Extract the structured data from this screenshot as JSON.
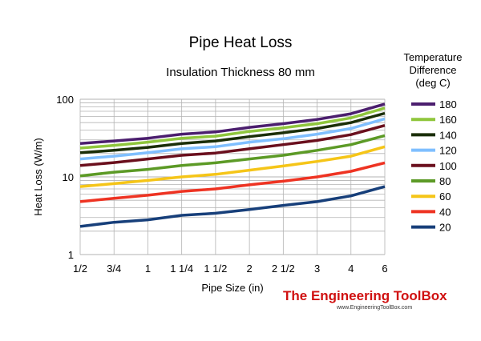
{
  "chart_data": {
    "type": "line",
    "title": "Pipe Heat Loss",
    "subtitle": "Insulation Thickness 80 mm",
    "xlabel": "Pipe Size (in)",
    "ylabel": "Heat Loss (W/m)",
    "y_scale": "log",
    "ylim": [
      1,
      100
    ],
    "y_ticks": [
      "1",
      "10",
      "100"
    ],
    "grid": true,
    "legend_position": "right",
    "legend_title": "Temperature Difference (deg C)",
    "categories": [
      "1/2",
      "3/4",
      "1",
      "1 1/4",
      "1 1/2",
      "2",
      "2 1/2",
      "3",
      "4",
      "6"
    ],
    "series": [
      {
        "name": "180",
        "color": "#4b1e6e",
        "values": [
          27,
          29,
          31.5,
          35.5,
          38,
          43.5,
          48.5,
          55,
          65,
          87
        ]
      },
      {
        "name": "160",
        "color": "#8fc63c",
        "values": [
          23.5,
          25.5,
          28,
          31.5,
          33.5,
          38.5,
          43,
          48.5,
          57.5,
          77
        ]
      },
      {
        "name": "140",
        "color": "#1a2e08",
        "values": [
          20.5,
          22,
          24,
          27,
          29,
          33,
          37,
          42,
          50,
          66
        ]
      },
      {
        "name": "120",
        "color": "#7fbfff",
        "values": [
          17,
          18.5,
          20.5,
          23,
          24.5,
          28,
          31,
          35.5,
          42,
          56
        ]
      },
      {
        "name": "100",
        "color": "#6a0f1d",
        "values": [
          14,
          15.3,
          17,
          19,
          20.3,
          23,
          26,
          29.5,
          35,
          46
        ]
      },
      {
        "name": "80",
        "color": "#5c9a26",
        "values": [
          10.3,
          11.5,
          12.5,
          14,
          15.2,
          17,
          19,
          22,
          26,
          34
        ]
      },
      {
        "name": "60",
        "color": "#f5c518",
        "values": [
          7.5,
          8.2,
          9,
          10,
          10.8,
          12.2,
          13.8,
          15.8,
          18.5,
          24.5
        ]
      },
      {
        "name": "40",
        "color": "#ee3322",
        "values": [
          4.8,
          5.3,
          5.8,
          6.5,
          7,
          7.9,
          8.8,
          10,
          11.8,
          15.2
        ]
      },
      {
        "name": "20",
        "color": "#173f7a",
        "values": [
          2.3,
          2.6,
          2.8,
          3.2,
          3.4,
          3.8,
          4.3,
          4.8,
          5.7,
          7.5
        ]
      }
    ]
  },
  "branding": {
    "name": "The Engineering ToolBox",
    "url": "www.EngineeringToolBox.com"
  },
  "legend_title_lines": [
    "Temperature",
    "Difference",
    "(deg C)"
  ]
}
